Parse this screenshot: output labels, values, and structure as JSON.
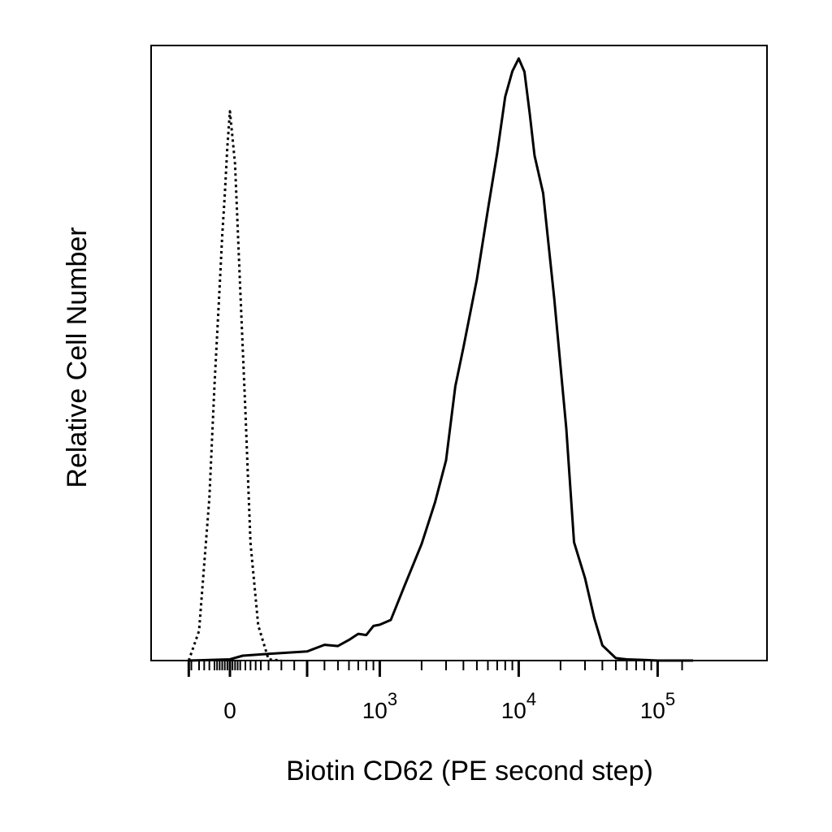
{
  "chart_data": {
    "type": "line",
    "title": "",
    "xlabel": "Biotin CD62 (PE second step)",
    "ylabel": "Relative Cell Number",
    "x_scale": "biexponential",
    "xlim": [
      -160,
      180000
    ],
    "ylim": [
      0,
      100
    ],
    "grid": false,
    "legend": "none",
    "x_ticks": [
      {
        "value": 0,
        "base": "0",
        "exp": ""
      },
      {
        "value": 1000,
        "base": "10",
        "exp": "3"
      },
      {
        "value": 10000,
        "base": "10",
        "exp": "4"
      },
      {
        "value": 100000,
        "base": "10",
        "exp": "5"
      }
    ],
    "series": [
      {
        "style": "dotted",
        "color": "#000000",
        "x": [
          -160,
          -120,
          -80,
          -60,
          -40,
          -30,
          -20,
          -10,
          0,
          20,
          40,
          60,
          80,
          110,
          150,
          200
        ],
        "y": [
          0.0,
          4.9,
          26.8,
          45.4,
          61.5,
          70.0,
          76.8,
          84.6,
          90.5,
          81.8,
          61.1,
          41.2,
          19.4,
          5.8,
          0.2,
          0.0
        ]
      },
      {
        "style": "solid",
        "color": "#000000",
        "x": [
          -160,
          0,
          50,
          150,
          300,
          400,
          500,
          600,
          700,
          800,
          900,
          1000,
          1200,
          1500,
          2000,
          2500,
          3000,
          3500,
          4000,
          5000,
          6000,
          7000,
          8000,
          9000,
          10000,
          11000,
          12000,
          13000,
          15000,
          18000,
          22000,
          25000,
          30000,
          35000,
          40000,
          50000,
          60000,
          80000,
          100000,
          180000
        ],
        "y": [
          0.0,
          0.2,
          0.8,
          1.1,
          1.5,
          2.6,
          2.4,
          3.4,
          4.4,
          4.2,
          5.7,
          5.9,
          6.7,
          12.2,
          19.2,
          26.1,
          33.0,
          45.2,
          51.6,
          62.8,
          74.3,
          83.6,
          92.9,
          97.1,
          99.2,
          97.0,
          90.1,
          83.2,
          77.0,
          59.7,
          38.2,
          19.5,
          13.6,
          7.0,
          2.5,
          0.4,
          0.2,
          0.1,
          0.0,
          0.0
        ]
      }
    ]
  }
}
